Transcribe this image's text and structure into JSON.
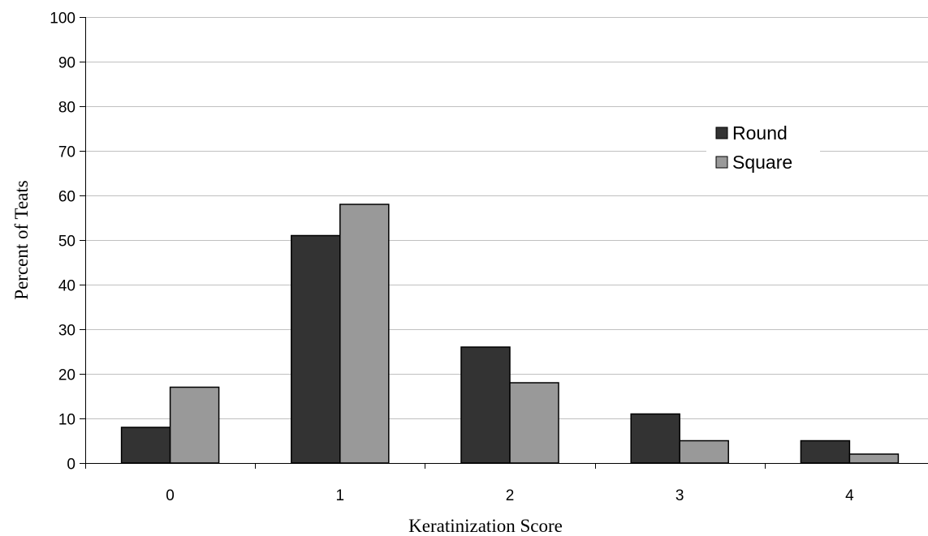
{
  "chart_data": {
    "type": "bar",
    "title": "",
    "xlabel": "Keratinization Score",
    "ylabel": "Percent of Teats",
    "categories": [
      "0",
      "1",
      "2",
      "3",
      "4"
    ],
    "series": [
      {
        "name": "Round",
        "values": [
          8,
          51,
          26,
          11,
          5
        ],
        "color": "#333333"
      },
      {
        "name": "Square",
        "values": [
          17,
          58,
          18,
          5,
          2
        ],
        "color": "#999999"
      }
    ],
    "ylim": [
      0,
      100
    ],
    "yticks": [
      0,
      10,
      20,
      30,
      40,
      50,
      60,
      70,
      80,
      90,
      100
    ],
    "grid": true,
    "legend_position": "right"
  }
}
